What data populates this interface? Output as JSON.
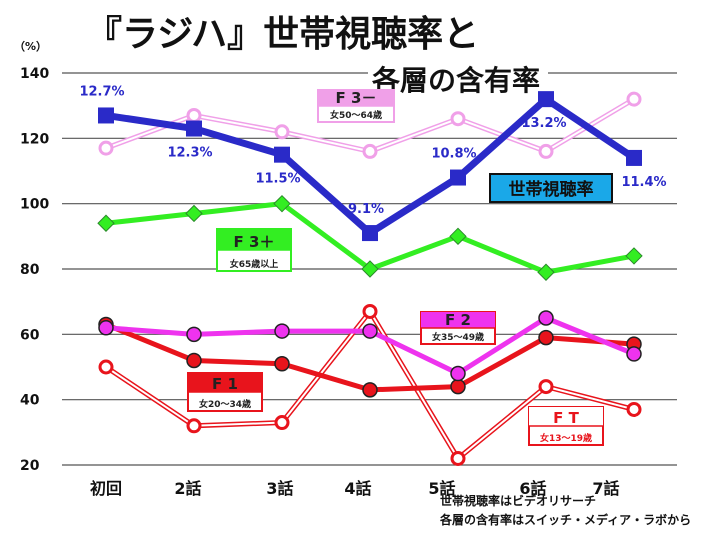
{
  "chart_data": {
    "type": "line",
    "title_line1": "『ラジハ』世帯視聴率と",
    "title_line2": "各層の含有率",
    "yunit": "（%）",
    "ylim": [
      20,
      140
    ],
    "yticks": [
      20,
      40,
      60,
      80,
      100,
      120,
      140
    ],
    "grid": true,
    "categories": [
      "初回",
      "2話",
      "3話",
      "4話",
      "5話",
      "6話",
      "7話"
    ],
    "series": [
      {
        "key": "ft",
        "name": "F T",
        "sub": "女13〜19歳",
        "color": "#e8141c",
        "style": "hollow-double",
        "values": [
          50,
          32,
          33,
          67,
          22,
          44,
          37
        ]
      },
      {
        "key": "f1",
        "name": "F 1",
        "sub": "女20〜34歳",
        "color": "#e8141c",
        "style": "solid-circle",
        "values": [
          63,
          52,
          51,
          43,
          44,
          59,
          57
        ]
      },
      {
        "key": "f2",
        "name": "F 2",
        "sub": "女35〜49歳",
        "color": "#ee33ee",
        "style": "solid-circle",
        "values": [
          62,
          60,
          61,
          61,
          48,
          65,
          54
        ]
      },
      {
        "key": "f3p",
        "name": "F 3＋",
        "sub": "女65歳以上",
        "color": "#33ee22",
        "style": "diamond",
        "values": [
          94,
          97,
          100,
          80,
          90,
          79,
          84
        ]
      },
      {
        "key": "f3m",
        "name": "F 3－",
        "sub": "女50〜64歳",
        "color": "#f0a0e8",
        "style": "hollow-double",
        "values": [
          117,
          127,
          122,
          116,
          126,
          116,
          132
        ]
      },
      {
        "key": "hh",
        "name": "世帯視聴率",
        "color": "#2a2ac8",
        "style": "square",
        "values": [
          127,
          123,
          115,
          91,
          108,
          132,
          114
        ],
        "labels": [
          "12.7%",
          "12.3%",
          "11.5%",
          "9.1%",
          "10.8%",
          "13.2%",
          "11.4%"
        ]
      }
    ],
    "legend_box_color_hh": "#1aa8e8",
    "notes": [
      "世帯視聴率はビデオリサーチ",
      "各層の含有率はスイッチ・メディア・ラボから"
    ]
  }
}
